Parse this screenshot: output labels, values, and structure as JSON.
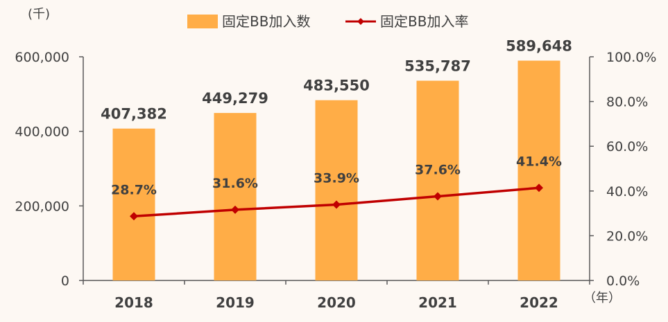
{
  "chart_data": {
    "type": "bar",
    "categories": [
      "2018",
      "2019",
      "2020",
      "2021",
      "2022"
    ],
    "series": [
      {
        "name": "固定BB加入数",
        "type": "bar",
        "axis": "left",
        "values": [
          407382,
          449279,
          483550,
          535787,
          589648
        ],
        "labels": [
          "407,382",
          "449,279",
          "483,550",
          "535,787",
          "589,648"
        ],
        "color": "#FFAD47"
      },
      {
        "name": "固定BB加入率",
        "type": "line",
        "axis": "right",
        "values": [
          28.7,
          31.6,
          33.9,
          37.6,
          41.4
        ],
        "labels": [
          "28.7%",
          "31.6%",
          "33.9%",
          "37.6%",
          "41.4%"
        ],
        "color": "#C00000"
      }
    ],
    "y_left": {
      "unit_label": "(千)",
      "ticks": [
        "0",
        "200,000",
        "400,000",
        "600,000"
      ],
      "tick_values": [
        0,
        200000,
        400000,
        600000
      ],
      "ylim": [
        0,
        600000
      ]
    },
    "y_right": {
      "ticks": [
        "0.0%",
        "20.0%",
        "40.0%",
        "60.0%",
        "80.0%",
        "100.0%"
      ],
      "tick_values": [
        0,
        20,
        40,
        60,
        80,
        100
      ],
      "ylim": [
        0,
        100
      ]
    },
    "x_unit_label": "（年）",
    "legend_position": "top",
    "grid": false
  }
}
